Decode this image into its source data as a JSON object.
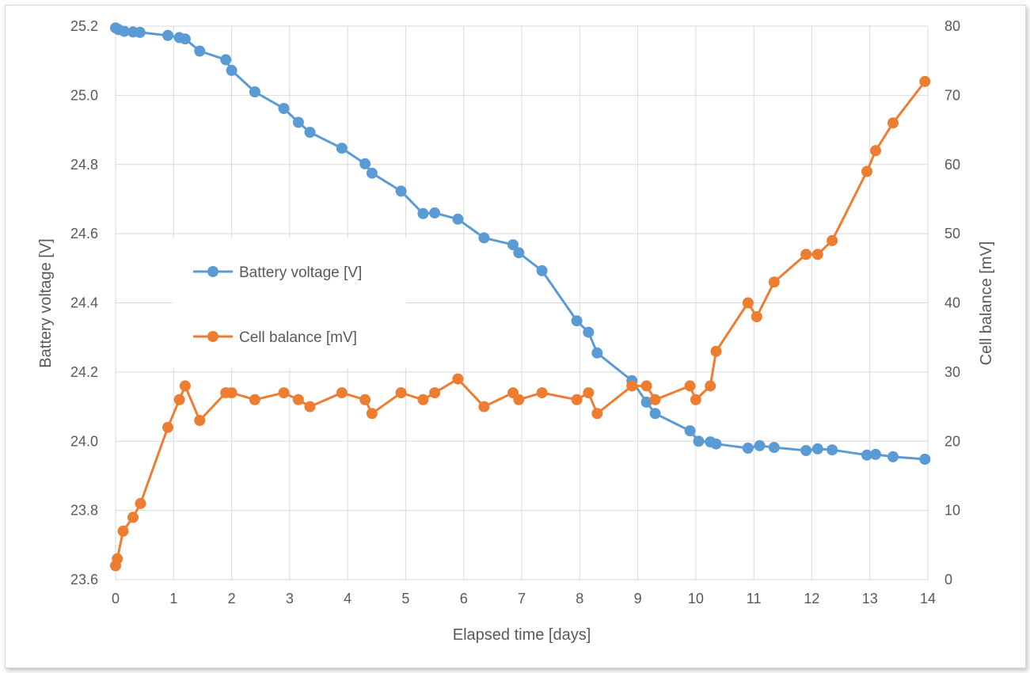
{
  "chart_data": {
    "type": "line",
    "xlabel": "Elapsed time [days]",
    "ylabel": "Battery voltage [V]",
    "y2label": "Cell balance [mV]",
    "xlim": [
      0,
      14
    ],
    "ylim": [
      23.6,
      25.2
    ],
    "y2lim": [
      0,
      80
    ],
    "x_ticks": [
      "0",
      "1",
      "2",
      "3",
      "4",
      "5",
      "6",
      "7",
      "8",
      "9",
      "10",
      "11",
      "12",
      "13",
      "14"
    ],
    "y_ticks": [
      "23.6",
      "23.8",
      "24.0",
      "24.2",
      "24.4",
      "24.6",
      "24.8",
      "25.0",
      "25.2"
    ],
    "y2_ticks": [
      "0",
      "10",
      "20",
      "30",
      "40",
      "50",
      "60",
      "70",
      "80"
    ],
    "grid": true,
    "legend_position": "left-center",
    "series": [
      {
        "name": "Battery voltage [V]",
        "axis": "left",
        "color": "#5b9bd5",
        "x": [
          0.0,
          0.05,
          0.15,
          0.3,
          0.42,
          0.9,
          1.1,
          1.2,
          1.45,
          1.9,
          2.0,
          2.4,
          2.9,
          3.15,
          3.35,
          3.9,
          4.3,
          4.42,
          4.92,
          5.3,
          5.5,
          5.9,
          6.35,
          6.85,
          6.95,
          7.35,
          7.95,
          8.15,
          8.3,
          8.9,
          9.15,
          9.3,
          9.9,
          10.05,
          10.25,
          10.35,
          10.9,
          11.1,
          11.35,
          11.9,
          12.1,
          12.35,
          12.95,
          13.1,
          13.4,
          13.95
        ],
        "y": [
          25.195,
          25.19,
          25.185,
          25.183,
          25.182,
          25.173,
          25.167,
          25.163,
          25.128,
          25.103,
          25.072,
          25.01,
          24.962,
          24.922,
          24.893,
          24.847,
          24.802,
          24.775,
          24.723,
          24.658,
          24.66,
          24.642,
          24.588,
          24.568,
          24.545,
          24.493,
          24.348,
          24.315,
          24.255,
          24.175,
          24.113,
          24.08,
          24.03,
          24.0,
          23.998,
          23.992,
          23.98,
          23.987,
          23.982,
          23.973,
          23.978,
          23.975,
          23.96,
          23.962,
          23.955,
          23.948
        ]
      },
      {
        "name": "Cell balance [mV]",
        "axis": "right",
        "color": "#ed7d31",
        "x": [
          0.0,
          0.03,
          0.13,
          0.3,
          0.43,
          0.9,
          1.1,
          1.2,
          1.45,
          1.9,
          2.0,
          2.4,
          2.9,
          3.15,
          3.35,
          3.9,
          4.3,
          4.42,
          4.92,
          5.3,
          5.5,
          5.9,
          6.35,
          6.85,
          6.95,
          7.35,
          7.95,
          8.15,
          8.3,
          8.9,
          9.15,
          9.3,
          9.9,
          10.0,
          10.25,
          10.35,
          10.9,
          11.05,
          11.35,
          11.9,
          12.1,
          12.35,
          12.95,
          13.1,
          13.4,
          13.95
        ],
        "y": [
          2,
          3,
          7,
          9,
          11,
          22,
          26,
          28,
          23,
          27,
          27,
          26,
          27,
          26,
          25,
          27,
          26,
          24,
          27,
          26,
          27,
          29,
          25,
          27,
          26,
          27,
          26,
          27,
          24,
          28,
          28,
          26,
          28,
          26,
          28,
          33,
          40,
          38,
          43,
          47,
          47,
          49,
          59,
          62,
          66,
          72
        ]
      }
    ]
  }
}
